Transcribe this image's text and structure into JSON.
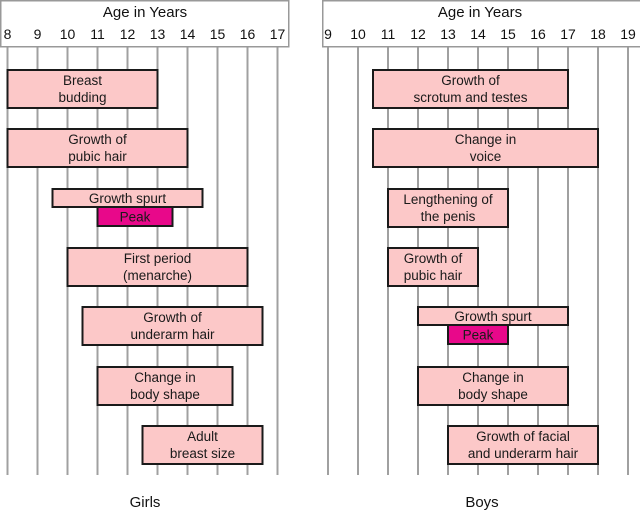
{
  "colors": {
    "bar_fill": "#fcc8c8",
    "peak_fill": "#e8088a",
    "border": "#1a1a1a",
    "grid": "#a0a0a0"
  },
  "chart_data": [
    {
      "type": "gantt",
      "panel_label": "Girls",
      "axis_title": "Age in Years",
      "xlim": [
        8,
        17
      ],
      "ticks": [
        "8",
        "9",
        "10",
        "11",
        "12",
        "13",
        "14",
        "15",
        "16",
        "17"
      ],
      "grid": true,
      "bars": [
        {
          "label": [
            "Breast",
            "budding"
          ],
          "start": 8,
          "end": 13,
          "kind": "stage"
        },
        {
          "label": [
            "Growth of",
            "pubic hair"
          ],
          "start": 8,
          "end": 14,
          "kind": "stage"
        },
        {
          "label": [
            "Growth spurt"
          ],
          "start": 9.5,
          "end": 14.5,
          "kind": "spurt"
        },
        {
          "label": [
            "Peak"
          ],
          "start": 11,
          "end": 13.5,
          "kind": "peak"
        },
        {
          "label": [
            "First period",
            "(menarche)"
          ],
          "start": 10,
          "end": 16,
          "kind": "stage"
        },
        {
          "label": [
            "Growth of",
            "underarm hair"
          ],
          "start": 10.5,
          "end": 16.5,
          "kind": "stage"
        },
        {
          "label": [
            "Change in",
            "body shape"
          ],
          "start": 11,
          "end": 15.5,
          "kind": "stage"
        },
        {
          "label": [
            "Adult",
            "breast size"
          ],
          "start": 12.5,
          "end": 16.5,
          "kind": "stage"
        }
      ]
    },
    {
      "type": "gantt",
      "panel_label": "Boys",
      "axis_title": "Age in Years",
      "xlim": [
        9,
        19
      ],
      "ticks": [
        "9",
        "10",
        "11",
        "12",
        "13",
        "14",
        "15",
        "16",
        "17",
        "18",
        "19"
      ],
      "grid": true,
      "bars": [
        {
          "label": [
            "Growth of",
            "scrotum and testes"
          ],
          "start": 10.5,
          "end": 17,
          "kind": "stage"
        },
        {
          "label": [
            "Change in",
            "voice"
          ],
          "start": 10.5,
          "end": 18,
          "kind": "stage"
        },
        {
          "label": [
            "Lengthening of",
            "the penis"
          ],
          "start": 11,
          "end": 15,
          "kind": "stage"
        },
        {
          "label": [
            "Growth of",
            "pubic hair"
          ],
          "start": 11,
          "end": 14,
          "kind": "stage"
        },
        {
          "label": [
            "Growth spurt"
          ],
          "start": 12,
          "end": 17,
          "kind": "spurt"
        },
        {
          "label": [
            "Peak"
          ],
          "start": 13,
          "end": 15,
          "kind": "peak"
        },
        {
          "label": [
            "Change in",
            "body shape"
          ],
          "start": 12,
          "end": 17,
          "kind": "stage"
        },
        {
          "label": [
            "Growth of facial",
            "and underarm hair"
          ],
          "start": 13,
          "end": 18,
          "kind": "stage"
        }
      ]
    }
  ]
}
